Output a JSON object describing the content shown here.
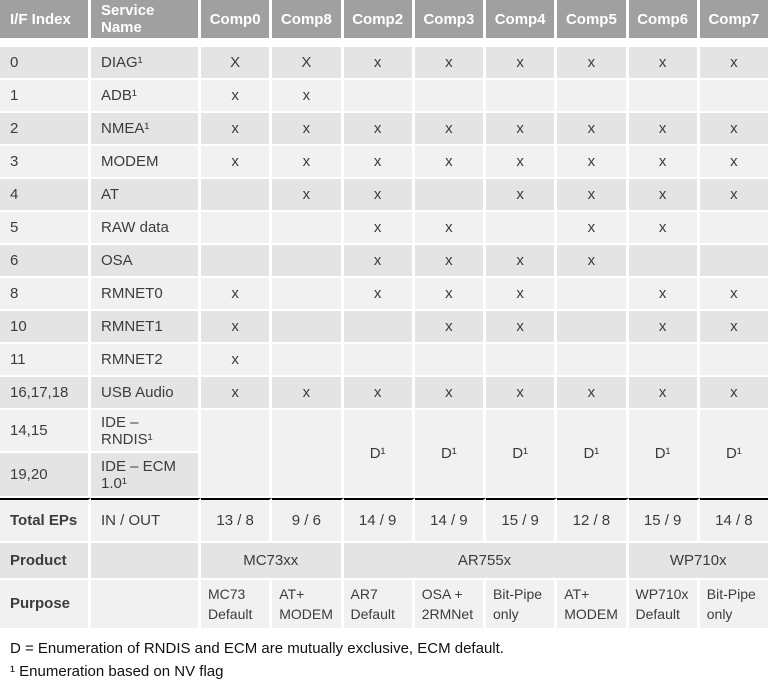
{
  "table": {
    "columns": [
      "I/F Index",
      "Service Name",
      "Comp0",
      "Comp8",
      "Comp2",
      "Comp3",
      "Comp4",
      "Comp5",
      "Comp6",
      "Comp7"
    ],
    "rows": [
      {
        "name": "row-0-diag",
        "cells": [
          {
            "t": "0"
          },
          {
            "t": "DIAG¹"
          },
          {
            "t": "X"
          },
          {
            "t": "X"
          },
          {
            "t": "x"
          },
          {
            "t": "x"
          },
          {
            "t": "x"
          },
          {
            "t": "x"
          },
          {
            "t": "x"
          },
          {
            "t": "x"
          }
        ]
      },
      {
        "name": "row-1-adb",
        "cells": [
          {
            "t": "1"
          },
          {
            "t": "ADB¹"
          },
          {
            "t": "x"
          },
          {
            "t": "x"
          },
          {
            "t": ""
          },
          {
            "t": ""
          },
          {
            "t": ""
          },
          {
            "t": ""
          },
          {
            "t": ""
          },
          {
            "t": ""
          }
        ]
      },
      {
        "name": "row-2-nmea",
        "cells": [
          {
            "t": "2"
          },
          {
            "t": "NMEA¹"
          },
          {
            "t": "x"
          },
          {
            "t": "x"
          },
          {
            "t": "x"
          },
          {
            "t": "x"
          },
          {
            "t": "x"
          },
          {
            "t": "x"
          },
          {
            "t": "x"
          },
          {
            "t": "x"
          }
        ]
      },
      {
        "name": "row-3-modem",
        "cells": [
          {
            "t": "3"
          },
          {
            "t": "MODEM"
          },
          {
            "t": "x"
          },
          {
            "t": "x"
          },
          {
            "t": "x"
          },
          {
            "t": "x"
          },
          {
            "t": "x"
          },
          {
            "t": "x"
          },
          {
            "t": "x"
          },
          {
            "t": "x"
          }
        ]
      },
      {
        "name": "row-4-at",
        "cells": [
          {
            "t": "4"
          },
          {
            "t": "AT"
          },
          {
            "t": ""
          },
          {
            "t": "x"
          },
          {
            "t": "x"
          },
          {
            "t": ""
          },
          {
            "t": "x"
          },
          {
            "t": "x"
          },
          {
            "t": "x"
          },
          {
            "t": "x"
          }
        ]
      },
      {
        "name": "row-5-raw-data",
        "cells": [
          {
            "t": "5"
          },
          {
            "t": "RAW data"
          },
          {
            "t": ""
          },
          {
            "t": ""
          },
          {
            "t": "x"
          },
          {
            "t": "x"
          },
          {
            "t": ""
          },
          {
            "t": "x"
          },
          {
            "t": "x"
          },
          {
            "t": ""
          }
        ]
      },
      {
        "name": "row-6-osa",
        "cells": [
          {
            "t": "6"
          },
          {
            "t": "OSA"
          },
          {
            "t": ""
          },
          {
            "t": ""
          },
          {
            "t": "x"
          },
          {
            "t": "x"
          },
          {
            "t": "x"
          },
          {
            "t": "x"
          },
          {
            "t": ""
          },
          {
            "t": ""
          }
        ]
      },
      {
        "name": "row-8-rmnet0",
        "cells": [
          {
            "t": "8"
          },
          {
            "t": "RMNET0"
          },
          {
            "t": "x"
          },
          {
            "t": ""
          },
          {
            "t": "x"
          },
          {
            "t": "x"
          },
          {
            "t": "x"
          },
          {
            "t": ""
          },
          {
            "t": "x"
          },
          {
            "t": "x"
          }
        ]
      },
      {
        "name": "row-10-rmnet1",
        "cells": [
          {
            "t": "10"
          },
          {
            "t": "RMNET1"
          },
          {
            "t": "x"
          },
          {
            "t": ""
          },
          {
            "t": ""
          },
          {
            "t": "x"
          },
          {
            "t": "x"
          },
          {
            "t": ""
          },
          {
            "t": "x"
          },
          {
            "t": "x"
          }
        ]
      },
      {
        "name": "row-11-rmnet2",
        "cells": [
          {
            "t": "11"
          },
          {
            "t": "RMNET2"
          },
          {
            "t": "x"
          },
          {
            "t": ""
          },
          {
            "t": ""
          },
          {
            "t": ""
          },
          {
            "t": ""
          },
          {
            "t": ""
          },
          {
            "t": ""
          },
          {
            "t": ""
          }
        ]
      },
      {
        "name": "row-16-17-18-usb-audio",
        "cells": [
          {
            "t": "16,17,18"
          },
          {
            "t": "USB Audio"
          },
          {
            "t": "x"
          },
          {
            "t": "x"
          },
          {
            "t": "x"
          },
          {
            "t": "x"
          },
          {
            "t": "x"
          },
          {
            "t": "x"
          },
          {
            "t": "x"
          },
          {
            "t": "x"
          }
        ]
      },
      {
        "name": "row-14-15-ide-rndis",
        "cells": [
          {
            "t": "14,15"
          },
          {
            "t": "IDE – RNDIS¹"
          },
          {
            "t": "",
            "rs": 2
          },
          {
            "t": "",
            "rs": 2
          },
          {
            "t": "D¹",
            "rs": 2
          },
          {
            "t": "D¹",
            "rs": 2
          },
          {
            "t": "D¹",
            "rs": 2
          },
          {
            "t": "D¹",
            "rs": 2
          },
          {
            "t": "D¹",
            "rs": 2
          },
          {
            "t": "D¹",
            "rs": 2
          }
        ]
      },
      {
        "name": "row-19-20-ide-ecm",
        "cells": [
          {
            "t": "19,20"
          },
          {
            "t": "IDE – ECM 1.0¹"
          }
        ]
      },
      {
        "name": "row-total-eps",
        "cells": [
          {
            "t": "Total EPs",
            "b": true
          },
          {
            "t": "IN / OUT"
          },
          {
            "t": "13 / 8"
          },
          {
            "t": "9 / 6"
          },
          {
            "t": "14 / 9"
          },
          {
            "t": "14 / 9"
          },
          {
            "t": "15 / 9"
          },
          {
            "t": "12 / 8"
          },
          {
            "t": "15 / 9"
          },
          {
            "t": "14 / 8"
          }
        ]
      },
      {
        "name": "row-product",
        "cells": [
          {
            "t": "Product",
            "b": true
          },
          {
            "t": ""
          },
          {
            "t": "MC73xx",
            "cs": 2
          },
          {
            "t": "AR755x",
            "cs": 4
          },
          {
            "t": "WP710x",
            "cs": 2
          }
        ]
      },
      {
        "name": "row-purpose",
        "cells": [
          {
            "t": "Purpose",
            "b": true
          },
          {
            "t": ""
          },
          {
            "t": "MC73 Default"
          },
          {
            "t": "AT+ MODEM"
          },
          {
            "t": "AR7 Default"
          },
          {
            "t": "OSA + 2RMNet"
          },
          {
            "t": "Bit-Pipe only"
          },
          {
            "t": "AT+ MODEM"
          },
          {
            "t": "WP710x Default"
          },
          {
            "t": "Bit-Pipe only"
          }
        ]
      }
    ]
  },
  "notes": [
    "D = Enumeration of RNDIS and ECM are mutually exclusive, ECM default.",
    "¹ Enumeration based on NV flag"
  ],
  "colors": {
    "header_bg": "#a0a0a0",
    "header_text": "#ffffff",
    "row_dark": "#e4e4e4",
    "row_light": "#f1f1f1",
    "rule": "#000000"
  }
}
